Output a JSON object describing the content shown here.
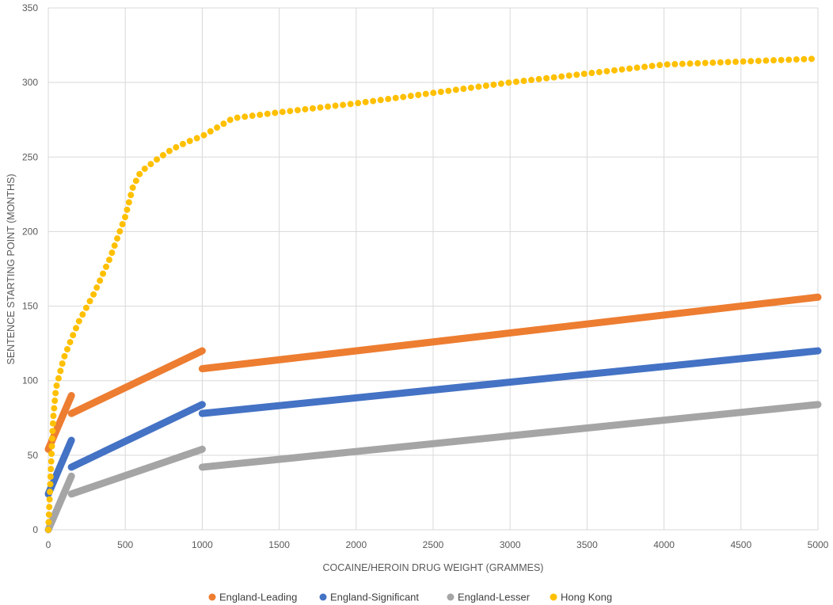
{
  "chart_data": {
    "type": "line",
    "title": "",
    "xlabel": "COCAINE/HEROIN DRUG WEIGHT (GRAMMES)",
    "ylabel": "SENTENCE STARTING POINT (MONTHS)",
    "xlim": [
      0,
      5000
    ],
    "ylim": [
      0,
      350
    ],
    "x_ticks": [
      0,
      500,
      1000,
      1500,
      2000,
      2500,
      3000,
      3500,
      4000,
      4500,
      5000
    ],
    "y_ticks": [
      0,
      50,
      100,
      150,
      200,
      250,
      300,
      350
    ],
    "grid": "on",
    "legend_position": "bottom",
    "series": [
      {
        "name": "England-Leading",
        "color": "#ED7D31",
        "style": "solid",
        "segments": [
          [
            [
              0,
              54
            ],
            [
              150,
              90
            ]
          ],
          [
            [
              150,
              78
            ],
            [
              1000,
              120
            ]
          ],
          [
            [
              1000,
              108
            ],
            [
              5000,
              156
            ]
          ]
        ]
      },
      {
        "name": "England-Significant",
        "color": "#4472C4",
        "style": "solid",
        "segments": [
          [
            [
              0,
              24
            ],
            [
              150,
              60
            ]
          ],
          [
            [
              150,
              42
            ],
            [
              1000,
              84
            ]
          ],
          [
            [
              1000,
              78
            ],
            [
              5000,
              120
            ]
          ]
        ]
      },
      {
        "name": "England-Lesser",
        "color": "#A5A5A5",
        "style": "solid",
        "segments": [
          [
            [
              0,
              0
            ],
            [
              150,
              36
            ]
          ],
          [
            [
              150,
              24
            ],
            [
              1000,
              54
            ]
          ],
          [
            [
              1000,
              42
            ],
            [
              5000,
              84
            ]
          ]
        ]
      },
      {
        "name": "Hong Kong",
        "color": "#FFC000",
        "style": "dotted",
        "points": [
          [
            0,
            0
          ],
          [
            30,
            73
          ],
          [
            50,
            95
          ],
          [
            100,
            115
          ],
          [
            150,
            128
          ],
          [
            200,
            140
          ],
          [
            300,
            159
          ],
          [
            400,
            182
          ],
          [
            500,
            210
          ],
          [
            550,
            230
          ],
          [
            600,
            240
          ],
          [
            700,
            248
          ],
          [
            800,
            255
          ],
          [
            900,
            260
          ],
          [
            1000,
            264
          ],
          [
            1100,
            270
          ],
          [
            1200,
            276
          ],
          [
            1500,
            280
          ],
          [
            2000,
            286
          ],
          [
            2500,
            293
          ],
          [
            3000,
            300
          ],
          [
            3500,
            306
          ],
          [
            4000,
            312
          ],
          [
            4500,
            314
          ],
          [
            5000,
            316
          ]
        ]
      }
    ]
  }
}
